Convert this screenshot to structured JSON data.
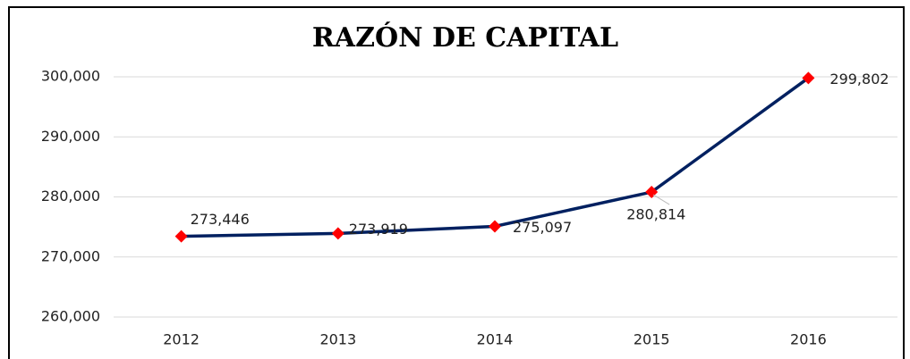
{
  "chart_data": {
    "type": "line",
    "title": "RAZÓN DE CAPITAL",
    "categories": [
      "2012",
      "2013",
      "2014",
      "2015",
      "2016"
    ],
    "series": [
      {
        "name": "Razón de capital",
        "color": "#002060",
        "marker_color": "#ff0000",
        "values": [
          273446,
          273919,
          275097,
          280814,
          299802
        ],
        "value_labels": [
          "273,446",
          "273,919",
          "275,097",
          "280,814",
          "299,802"
        ]
      }
    ],
    "ylim": [
      260000,
      300000
    ],
    "yticks": [
      {
        "value": 260000,
        "label": "260,000"
      },
      {
        "value": 270000,
        "label": "270,000"
      },
      {
        "value": 280000,
        "label": "280,000"
      },
      {
        "value": 290000,
        "label": "290,000"
      },
      {
        "value": 300000,
        "label": "300,000"
      }
    ],
    "grid": true
  }
}
